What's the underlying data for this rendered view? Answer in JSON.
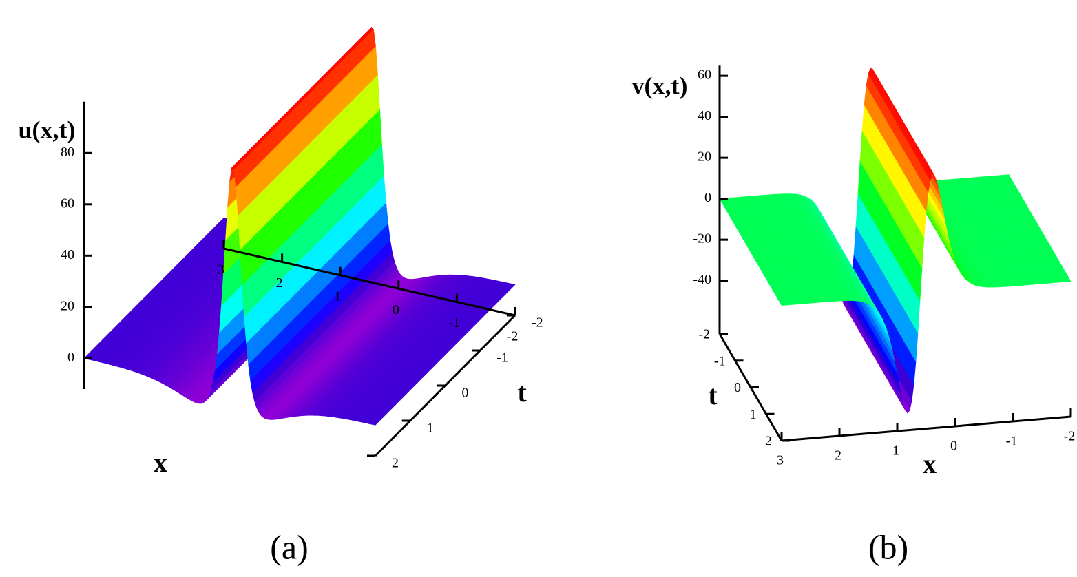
{
  "chart_data": [
    {
      "type": "surface",
      "caption": "(a)",
      "zlabel": "u(x,t)",
      "xlabel": "x",
      "ylabel": "t",
      "xlim": [
        3,
        -2
      ],
      "ylim": [
        2,
        -2
      ],
      "zlim": [
        -12,
        100
      ],
      "xticks": [
        3,
        2,
        1,
        0,
        -1,
        -2
      ],
      "yticks": [
        -2,
        -1,
        0,
        1,
        2
      ],
      "zticks": [
        0,
        20,
        40,
        60,
        80
      ]
    },
    {
      "type": "surface",
      "caption": "(b)",
      "zlabel": "v(x,t)",
      "xlabel": "x",
      "ylabel": "t",
      "xlim": [
        3,
        -2
      ],
      "ylim": [
        -2,
        2
      ],
      "zlim": [
        -66,
        65
      ],
      "xticks": [
        3,
        2,
        1,
        0,
        -1,
        -2
      ],
      "yticks": [
        -2,
        -1,
        0,
        1,
        2
      ],
      "zticks": [
        -40,
        -20,
        0,
        20,
        40,
        60
      ]
    }
  ]
}
